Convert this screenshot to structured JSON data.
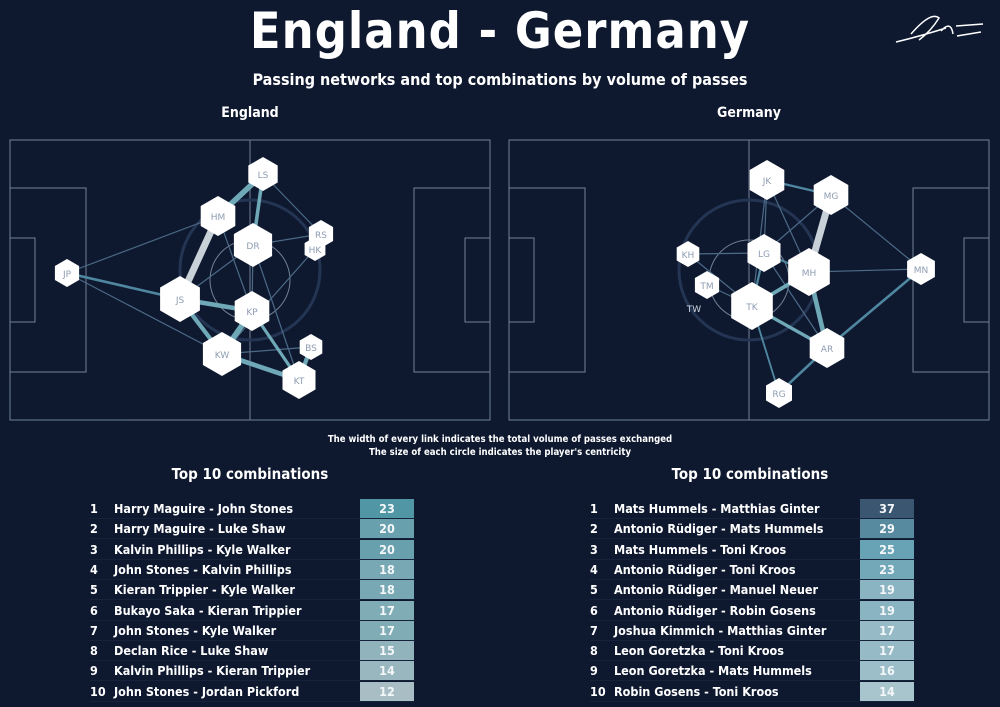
{
  "title": "England - Germany",
  "subtitle": "Passing networks and top combinations by volume of passes",
  "notes": [
    "The width of every link indicates the total volume of passes exchanged",
    "The size of each circle indicates the player's centricity"
  ],
  "signature": "signature",
  "chart_data": [
    {
      "type": "network",
      "team": "England",
      "nodes": [
        "LS",
        "HM",
        "DR",
        "RS",
        "HK",
        "JP",
        "JS",
        "KP",
        "KW",
        "BS",
        "KT"
      ],
      "links": [
        [
          "HM",
          "JS",
          23
        ],
        [
          "HM",
          "LS",
          20
        ],
        [
          "KP",
          "KW",
          20
        ],
        [
          "JS",
          "KP",
          18
        ],
        [
          "KT",
          "KW",
          18
        ],
        [
          "BS",
          "KT",
          17
        ],
        [
          "JS",
          "KW",
          17
        ],
        [
          "DR",
          "LS",
          15
        ],
        [
          "KP",
          "KT",
          14
        ],
        [
          "JS",
          "JP",
          12
        ]
      ],
      "table_title": "Top 10 combinations",
      "table": [
        [
          "1",
          "Harry Maguire - John Stones",
          23
        ],
        [
          "2",
          "Harry Maguire - Luke Shaw",
          20
        ],
        [
          "3",
          "Kalvin Phillips - Kyle Walker",
          20
        ],
        [
          "4",
          "John Stones - Kalvin Phillips",
          18
        ],
        [
          "5",
          "Kieran Trippier - Kyle Walker",
          18
        ],
        [
          "6",
          "Bukayo Saka - Kieran Trippier",
          17
        ],
        [
          "7",
          "John Stones - Kyle Walker",
          17
        ],
        [
          "8",
          "Declan Rice - Luke Shaw",
          15
        ],
        [
          "9",
          "Kalvin Phillips - Kieran Trippier",
          14
        ],
        [
          "10",
          "John Stones - Jordan Pickford",
          12
        ]
      ]
    },
    {
      "type": "network",
      "team": "Germany",
      "nodes": [
        "JK",
        "MG",
        "KH",
        "LG",
        "MH",
        "MN",
        "TM",
        "TW",
        "TK",
        "AR",
        "RG"
      ],
      "links": [
        [
          "MG",
          "MH",
          37
        ],
        [
          "AR",
          "MH",
          29
        ],
        [
          "MH",
          "TK",
          25
        ],
        [
          "AR",
          "TK",
          23
        ],
        [
          "AR",
          "MN",
          19
        ],
        [
          "AR",
          "RG",
          19
        ],
        [
          "JK",
          "MG",
          17
        ],
        [
          "LG",
          "TK",
          17
        ],
        [
          "LG",
          "MH",
          16
        ],
        [
          "RG",
          "TK",
          14
        ]
      ],
      "table_title": "Top 10 combinations",
      "table": [
        [
          "1",
          "Mats Hummels - Matthias Ginter",
          37
        ],
        [
          "2",
          "Antonio Rüdiger - Mats Hummels",
          29
        ],
        [
          "3",
          "Mats Hummels - Toni Kroos",
          25
        ],
        [
          "4",
          "Antonio Rüdiger - Toni Kroos",
          23
        ],
        [
          "5",
          "Antonio Rüdiger - Manuel Neuer",
          19
        ],
        [
          "6",
          "Antonio Rüdiger - Robin Gosens",
          19
        ],
        [
          "7",
          "Joshua Kimmich - Matthias Ginter",
          17
        ],
        [
          "8",
          "Leon Goretzka - Toni Kroos",
          17
        ],
        [
          "9",
          "Leon Goretzka - Mats Hummels",
          16
        ],
        [
          "10",
          "Robin Gosens - Toni Kroos",
          14
        ]
      ]
    }
  ]
}
